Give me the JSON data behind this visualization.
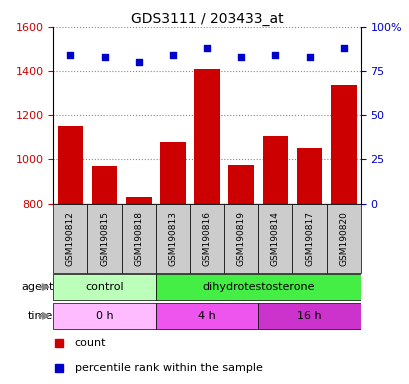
{
  "title": "GDS3111 / 203433_at",
  "samples": [
    "GSM190812",
    "GSM190815",
    "GSM190818",
    "GSM190813",
    "GSM190816",
    "GSM190819",
    "GSM190814",
    "GSM190817",
    "GSM190820"
  ],
  "counts": [
    1150,
    968,
    828,
    1080,
    1410,
    975,
    1105,
    1050,
    1335
  ],
  "percentiles": [
    84,
    83,
    80,
    84,
    88,
    83,
    84,
    83,
    88
  ],
  "ylim_left": [
    800,
    1600
  ],
  "ylim_right": [
    0,
    100
  ],
  "yticks_left": [
    800,
    1000,
    1200,
    1400,
    1600
  ],
  "yticks_right": [
    0,
    25,
    50,
    75,
    100
  ],
  "ytick_labels_right": [
    "0",
    "25",
    "50",
    "75",
    "100%"
  ],
  "bar_color": "#cc0000",
  "dot_color": "#0000cc",
  "agent_groups": [
    {
      "label": "control",
      "start": 0,
      "end": 3,
      "color": "#bbffbb"
    },
    {
      "label": "dihydrotestosterone",
      "start": 3,
      "end": 9,
      "color": "#44ee44"
    }
  ],
  "time_groups": [
    {
      "label": "0 h",
      "start": 0,
      "end": 3,
      "color": "#ffbbff"
    },
    {
      "label": "4 h",
      "start": 3,
      "end": 6,
      "color": "#ee55ee"
    },
    {
      "label": "16 h",
      "start": 6,
      "end": 9,
      "color": "#cc33cc"
    }
  ],
  "agent_label": "agent",
  "time_label": "time",
  "legend_count": "count",
  "legend_pct": "percentile rank within the sample",
  "bar_width": 0.75,
  "grid_color": "#888888",
  "tick_label_color_left": "#cc0000",
  "tick_label_color_right": "#0000cc",
  "bg_color_plot": "#ffffff",
  "bg_color_xticklabels": "#cccccc"
}
